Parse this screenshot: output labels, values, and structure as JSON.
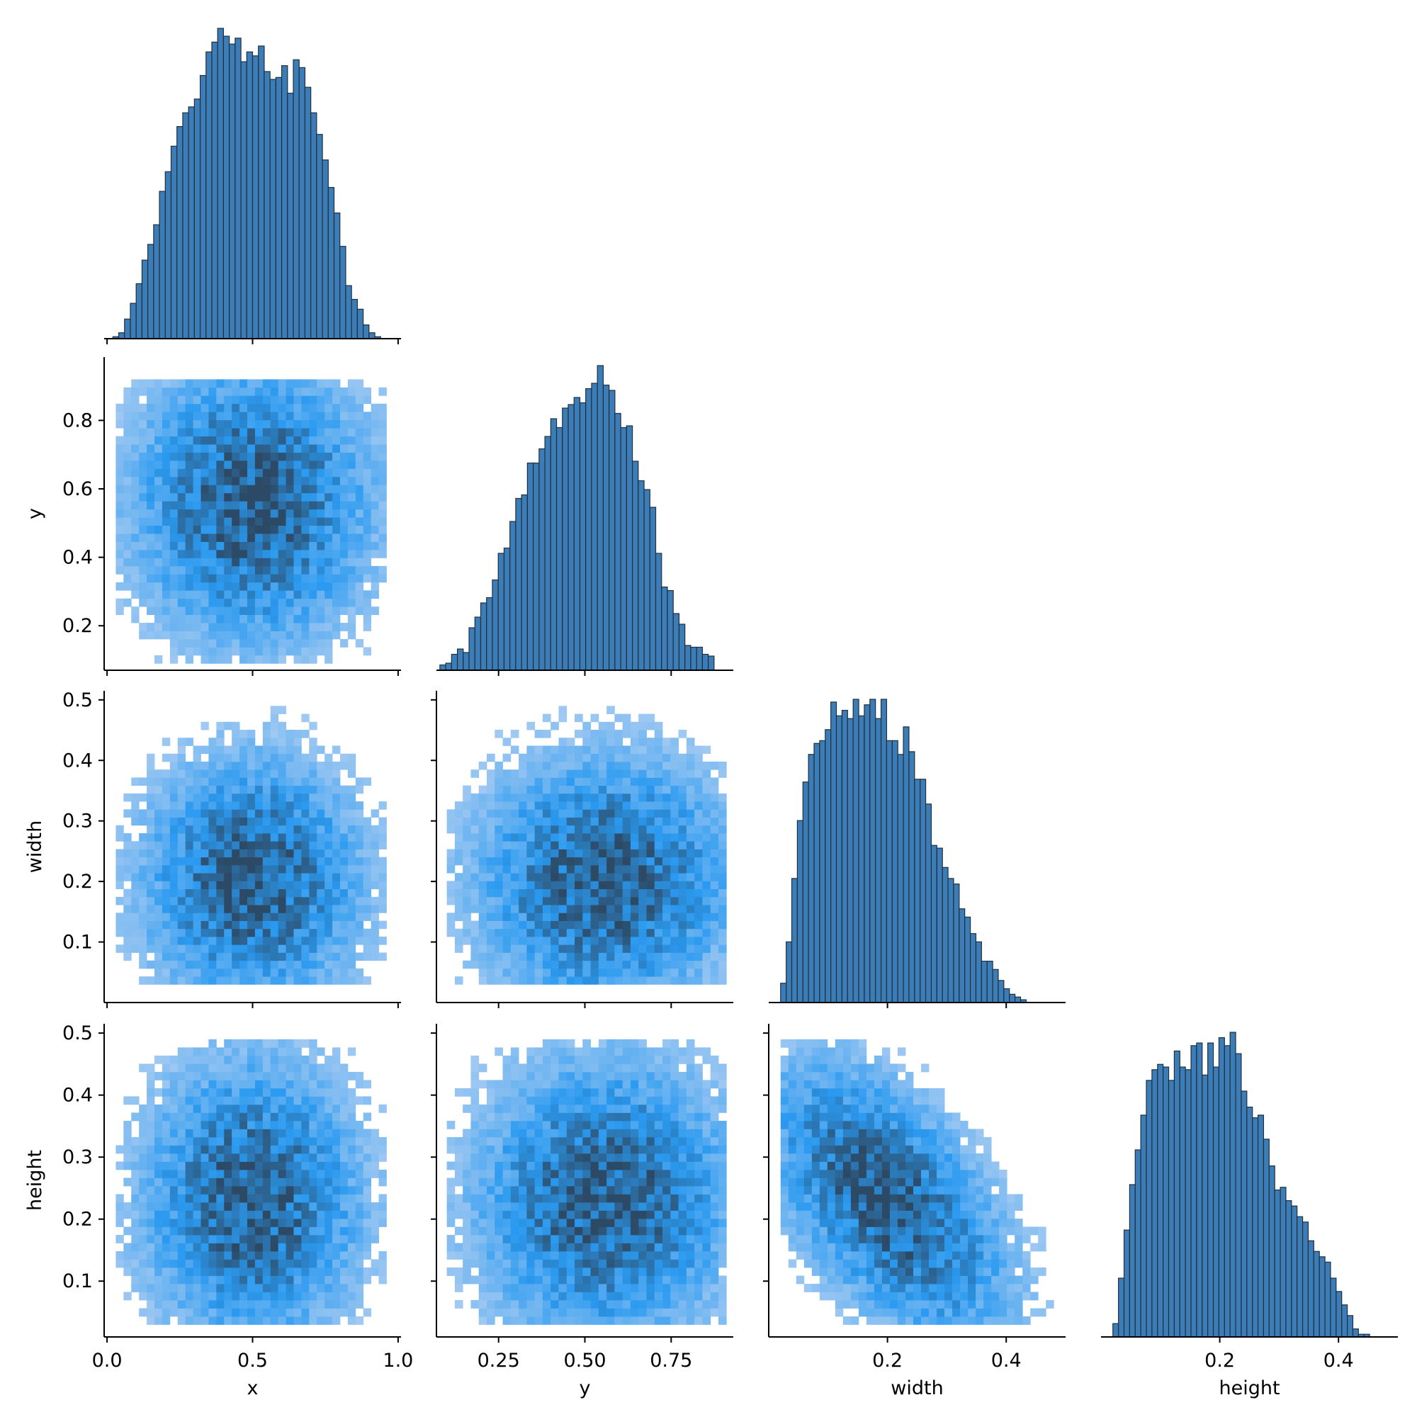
{
  "colors": {
    "bar": "#3d7db7",
    "bar_edge": "#1f2f3d",
    "hist2d_light": "#a6cbf2",
    "hist2d_mid": "#2b9af0",
    "hist2d_dark": "#2c4a66"
  },
  "chart_data": {
    "type": "pairplot-histogram-corner",
    "variables": [
      "x",
      "y",
      "width",
      "height"
    ],
    "axes": {
      "x": {
        "label": "x",
        "range": [
          -0.01,
          1.01
        ],
        "ticks": [
          0.0,
          0.5,
          1.0
        ],
        "tick_labels": [
          "0.0",
          "0.5",
          "1.0"
        ]
      },
      "y": {
        "label": "y",
        "range": [
          0.07,
          0.93
        ],
        "ticks": [
          0.25,
          0.5,
          0.75
        ],
        "tick_labels": [
          "0.25",
          "0.50",
          "0.75"
        ],
        "row_ticks": [
          0.2,
          0.4,
          0.6,
          0.8
        ],
        "row_tick_labels": [
          "0.2",
          "0.4",
          "0.6",
          "0.8"
        ],
        "row_range": [
          0.07,
          0.985
        ]
      },
      "width": {
        "label": "width",
        "range": [
          0.0,
          0.5
        ],
        "ticks": [
          0.2,
          0.4
        ],
        "tick_labels": [
          "0.2",
          "0.4"
        ],
        "row_ticks": [
          0.1,
          0.2,
          0.3,
          0.4,
          0.5
        ],
        "row_tick_labels": [
          "0.1",
          "0.2",
          "0.3",
          "0.4",
          "0.5"
        ],
        "row_range": [
          0.0,
          0.515
        ]
      },
      "height": {
        "label": "height",
        "range": [
          0.0,
          0.5
        ],
        "ticks": [
          0.2,
          0.4
        ],
        "tick_labels": [
          "0.2",
          "0.4"
        ],
        "row_ticks": [
          0.1,
          0.2,
          0.3,
          0.4,
          0.5
        ],
        "row_tick_labels": [
          "0.1",
          "0.2",
          "0.3",
          "0.4",
          "0.5"
        ],
        "row_range": [
          0.01,
          0.515
        ]
      }
    },
    "histograms": {
      "x": {
        "bin_start": 0.0,
        "bin_width": 0.02,
        "counts": [
          0,
          1,
          3,
          10,
          18,
          28,
          40,
          48,
          58,
          75,
          85,
          98,
          108,
          115,
          118,
          122,
          134,
          146,
          151,
          158,
          154,
          150,
          153,
          141,
          146,
          144,
          149,
          136,
          132,
          133,
          139,
          125,
          142,
          138,
          128,
          115,
          104,
          91,
          77,
          64,
          47,
          27,
          20,
          15,
          7,
          3,
          1,
          0,
          0,
          0
        ]
      },
      "y": {
        "bin_start": 0.08,
        "bin_width": 0.0169,
        "counts": [
          3,
          4,
          9,
          12,
          10,
          24,
          30,
          38,
          41,
          51,
          66,
          69,
          84,
          97,
          99,
          117,
          117,
          125,
          132,
          142,
          137,
          148,
          150,
          154,
          151,
          159,
          162,
          172,
          161,
          158,
          145,
          137,
          138,
          118,
          107,
          102,
          92,
          66,
          47,
          45,
          32,
          26,
          14,
          13,
          13,
          9,
          8
        ]
      },
      "width": {
        "bin_start": 0.02,
        "bin_width": 0.0094,
        "counts": [
          7,
          22,
          45,
          66,
          80,
          90,
          94,
          95,
          99,
          109,
          104,
          106,
          103,
          110,
          104,
          108,
          110,
          103,
          110,
          95,
          95,
          90,
          100,
          91,
          81,
          81,
          72,
          57,
          56,
          49,
          45,
          43,
          34,
          31,
          25,
          22,
          15,
          15,
          12,
          8,
          5,
          3,
          2,
          1
        ]
      },
      "height": {
        "bin_start": 0.02,
        "bin_width": 0.0094,
        "counts": [
          5,
          22,
          40,
          57,
          70,
          83,
          96,
          100,
          102,
          101,
          96,
          107,
          101,
          100,
          109,
          110,
          98,
          110,
          101,
          112,
          109,
          114,
          106,
          92,
          86,
          82,
          83,
          74,
          64,
          55,
          56,
          51,
          49,
          45,
          43,
          36,
          32,
          30,
          28,
          22,
          17,
          12,
          8,
          3,
          1,
          1
        ]
      }
    },
    "joint_histograms": [
      {
        "x_var": "x",
        "y_var": "y",
        "x_extent": [
          0.03,
          0.96
        ],
        "y_extent": [
          0.09,
          0.92
        ],
        "center": [
          0.5,
          0.56
        ],
        "spread": [
          0.22,
          0.22
        ],
        "correlation": 0.0,
        "bins": 35
      },
      {
        "x_var": "x",
        "y_var": "width",
        "x_extent": [
          0.03,
          0.96
        ],
        "y_extent": [
          0.03,
          0.49
        ],
        "center": [
          0.5,
          0.2
        ],
        "spread": [
          0.2,
          0.11
        ],
        "correlation": 0.0,
        "bins": 35
      },
      {
        "x_var": "y",
        "y_var": "width",
        "x_extent": [
          0.1,
          0.91
        ],
        "y_extent": [
          0.03,
          0.49
        ],
        "center": [
          0.56,
          0.2
        ],
        "spread": [
          0.2,
          0.11
        ],
        "correlation": 0.0,
        "bins": 35
      },
      {
        "x_var": "x",
        "y_var": "height",
        "x_extent": [
          0.03,
          0.96
        ],
        "y_extent": [
          0.03,
          0.49
        ],
        "center": [
          0.5,
          0.23
        ],
        "spread": [
          0.2,
          0.12
        ],
        "correlation": 0.0,
        "bins": 35
      },
      {
        "x_var": "y",
        "y_var": "height",
        "x_extent": [
          0.1,
          0.91
        ],
        "y_extent": [
          0.03,
          0.49
        ],
        "center": [
          0.56,
          0.23
        ],
        "spread": [
          0.2,
          0.12
        ],
        "correlation": 0.0,
        "bins": 35
      },
      {
        "x_var": "width",
        "y_var": "height",
        "x_extent": [
          0.02,
          0.48
        ],
        "y_extent": [
          0.03,
          0.49
        ],
        "center": [
          0.2,
          0.23
        ],
        "spread": [
          0.11,
          0.12
        ],
        "correlation": -0.55,
        "bins": 35
      }
    ]
  }
}
